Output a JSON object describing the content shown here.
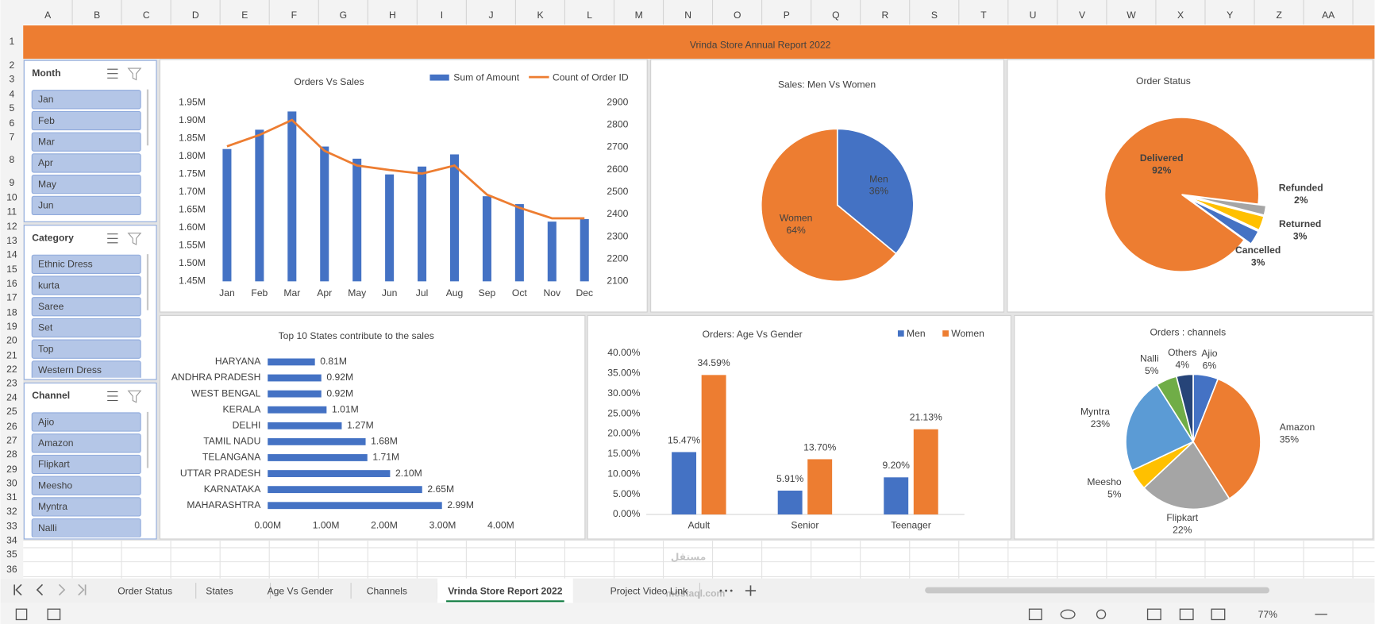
{
  "sheet": {
    "columns": [
      "A",
      "B",
      "C",
      "D",
      "E",
      "F",
      "G",
      "H",
      "I",
      "J",
      "K",
      "L",
      "M",
      "N",
      "O",
      "P",
      "Q",
      "R",
      "S",
      "T",
      "U",
      "V",
      "W",
      "X",
      "Y",
      "Z",
      "AA"
    ],
    "rows": [
      1,
      2,
      3,
      4,
      5,
      6,
      7,
      8,
      9,
      10,
      11,
      12,
      13,
      14,
      15,
      16,
      17,
      18,
      19,
      20,
      21,
      22,
      23,
      24,
      25,
      26,
      27,
      28,
      29,
      30,
      31,
      32,
      33,
      34,
      35,
      36
    ],
    "banner_title": "Vrinda Store Annual Report 2022"
  },
  "slicers": [
    {
      "title": "Month",
      "items": [
        "Jan",
        "Feb",
        "Mar",
        "Apr",
        "May",
        "Jun"
      ]
    },
    {
      "title": "Category",
      "items": [
        "Ethnic Dress",
        "kurta",
        "Saree",
        "Set",
        "Top",
        "Western Dress"
      ]
    },
    {
      "title": "Channel",
      "items": [
        "Ajio",
        "Amazon",
        "Flipkart",
        "Meesho",
        "Myntra",
        "Nalli"
      ]
    }
  ],
  "chart_data": [
    {
      "type": "combo",
      "title": "Orders Vs Sales",
      "categories": [
        "Jan",
        "Feb",
        "Mar",
        "Apr",
        "May",
        "Jun",
        "Jul",
        "Aug",
        "Sep",
        "Oct",
        "Nov",
        "Dec"
      ],
      "series": [
        {
          "name": "Sum of Amount",
          "type": "bar",
          "color": "#4472c4",
          "values": [
            1820000,
            1874000,
            1925000,
            1827000,
            1793000,
            1749000,
            1771000,
            1805000,
            1688000,
            1666000,
            1617000,
            1624000
          ]
        },
        {
          "name": "Count of Order ID",
          "type": "line",
          "axis": "y2",
          "color": "#ed7d31",
          "values": [
            2704,
            2755,
            2822,
            2684,
            2618,
            2598,
            2582,
            2618,
            2488,
            2429,
            2382,
            2382
          ]
        }
      ],
      "ylim": [
        1450000,
        1950000
      ],
      "yticks": [
        {
          "value": 1450000,
          "label": "1.45M"
        },
        {
          "value": 1500000,
          "label": "1.50M"
        },
        {
          "value": 1550000,
          "label": "1.55M"
        },
        {
          "value": 1600000,
          "label": "1.60M"
        },
        {
          "value": 1650000,
          "label": "1.65M"
        },
        {
          "value": 1700000,
          "label": "1.70M"
        },
        {
          "value": 1750000,
          "label": "1.75M"
        },
        {
          "value": 1800000,
          "label": "1.80M"
        },
        {
          "value": 1850000,
          "label": "1.85M"
        },
        {
          "value": 1900000,
          "label": "1.90M"
        },
        {
          "value": 1950000,
          "label": "1.95M"
        }
      ],
      "y2lim": [
        2100,
        2900
      ],
      "y2ticks": [
        2100,
        2200,
        2300,
        2400,
        2500,
        2600,
        2700,
        2800,
        2900
      ],
      "legend": "top-right"
    },
    {
      "type": "pie",
      "title": "Sales: Men Vs Women",
      "categories": [
        "Men",
        "Women"
      ],
      "values": [
        36,
        64
      ],
      "value_labels": [
        "36%",
        "64%"
      ],
      "colors": [
        "#4472c4",
        "#ed7d31"
      ]
    },
    {
      "type": "pie",
      "title": "Order Status",
      "categories": [
        "Delivered",
        "Refunded",
        "Returned",
        "Cancelled"
      ],
      "values": [
        92,
        2,
        3,
        3
      ],
      "value_labels": [
        "92%",
        "2%",
        "3%",
        "3%"
      ],
      "colors": [
        "#ed7d31",
        "#a5a5a5",
        "#ffc000",
        "#4472c4"
      ]
    },
    {
      "type": "barh",
      "title": "Top 10 States contribute to the sales",
      "categories": [
        "HARYANA",
        "ANDHRA PRADESH",
        "WEST BENGAL",
        "KERALA",
        "DELHI",
        "TAMIL NADU",
        "TELANGANA",
        "UTTAR PRADESH",
        "KARNATAKA",
        "MAHARASHTRA"
      ],
      "values": [
        810000,
        920000,
        920000,
        1010000,
        1270000,
        1680000,
        1710000,
        2100000,
        2650000,
        2990000
      ],
      "value_labels": [
        "0.81M",
        "0.92M",
        "0.92M",
        "1.01M",
        "1.27M",
        "1.68M",
        "1.71M",
        "2.10M",
        "2.65M",
        "2.99M"
      ],
      "color": "#4472c4",
      "xlim": [
        0,
        4000000
      ],
      "xticks": [
        {
          "value": 0,
          "label": "0.00M"
        },
        {
          "value": 1000000,
          "label": "1.00M"
        },
        {
          "value": 2000000,
          "label": "2.00M"
        },
        {
          "value": 3000000,
          "label": "3.00M"
        },
        {
          "value": 4000000,
          "label": "4.00M"
        }
      ]
    },
    {
      "type": "bar",
      "title": "Orders: Age Vs Gender",
      "categories": [
        "Adult",
        "Senior",
        "Teenager"
      ],
      "series": [
        {
          "name": "Men",
          "color": "#4472c4",
          "values": [
            15.47,
            5.91,
            9.2
          ],
          "value_labels": [
            "15.47%",
            "5.91%",
            "9.20%"
          ]
        },
        {
          "name": "Women",
          "color": "#ed7d31",
          "values": [
            34.59,
            13.7,
            21.13
          ],
          "value_labels": [
            "34.59%",
            "13.70%",
            "21.13%"
          ]
        }
      ],
      "ylim": [
        0,
        40
      ],
      "yticks": [
        {
          "value": 0,
          "label": "0.00%"
        },
        {
          "value": 5,
          "label": "5.00%"
        },
        {
          "value": 10,
          "label": "10.00%"
        },
        {
          "value": 15,
          "label": "15.00%"
        },
        {
          "value": 20,
          "label": "20.00%"
        },
        {
          "value": 25,
          "label": "25.00%"
        },
        {
          "value": 30,
          "label": "30.00%"
        },
        {
          "value": 35,
          "label": "35.00%"
        },
        {
          "value": 40,
          "label": "40.00%"
        }
      ],
      "legend": "top-right"
    },
    {
      "type": "pie",
      "title": "Orders : channels",
      "categories": [
        "Ajio",
        "Amazon",
        "Flipkart",
        "Meesho",
        "Myntra",
        "Nalli",
        "Others"
      ],
      "values": [
        6,
        35,
        22,
        5,
        23,
        5,
        4
      ],
      "value_labels": [
        "6%",
        "35%",
        "22%",
        "5%",
        "23%",
        "5%",
        "4%"
      ],
      "colors": [
        "#4472c4",
        "#ed7d31",
        "#a5a5a5",
        "#ffc000",
        "#5b9bd5",
        "#70ad47",
        "#264478"
      ]
    }
  ],
  "tabs": [
    "Order Status",
    "States",
    "Age Vs Gender",
    "Channels",
    "Vrinda Store Report 2022",
    "Project Video Link"
  ],
  "active_tab": 4,
  "status": {
    "zoom": "77%"
  },
  "watermark": {
    "arabic": "مستقل",
    "latin": "mostaql.com"
  }
}
